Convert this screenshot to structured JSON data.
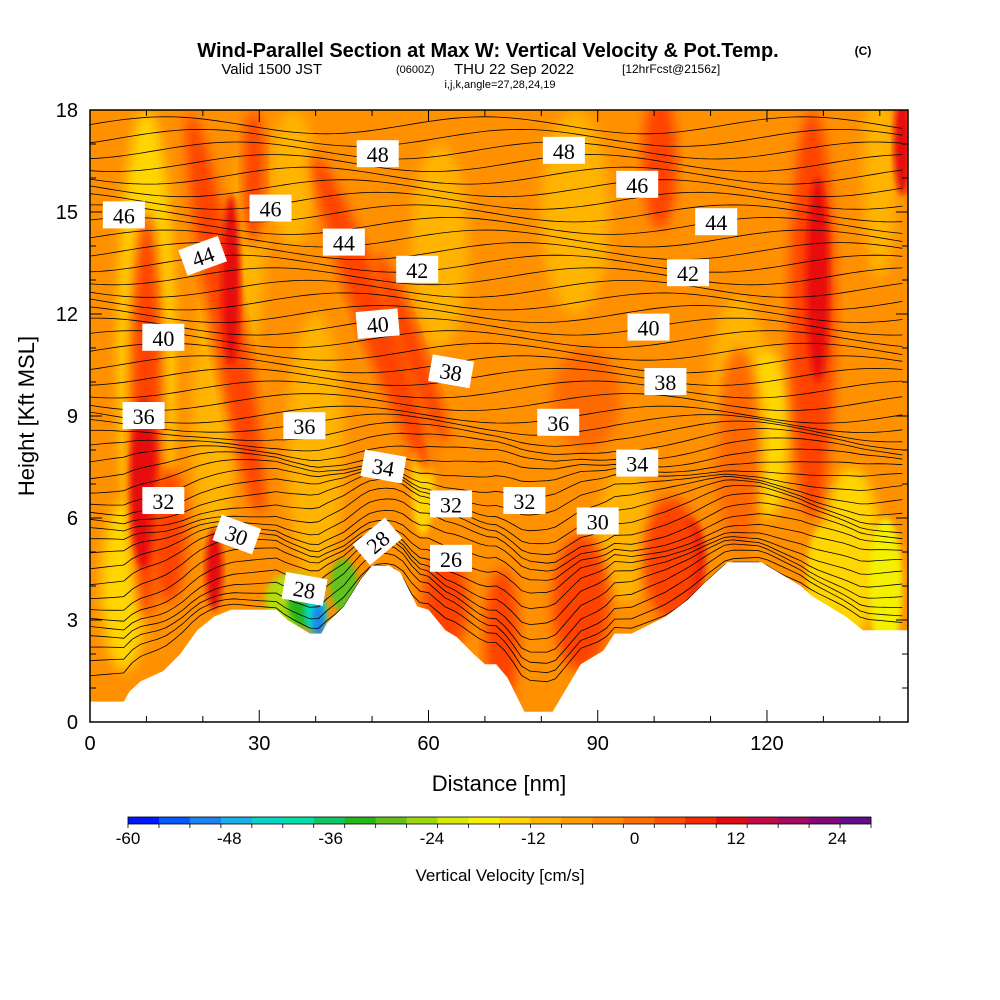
{
  "header": {
    "title_main": "Wind-Parallel Section at Max W: Vertical Velocity & Pot.Temp.",
    "title_c": "(C)",
    "subtitle_valid": "Valid 1500 JST",
    "subtitle_z": "(0600Z)",
    "subtitle_date": "THU 22 Sep 2022",
    "subtitle_fcst": "[12hrFcst@2156z]",
    "subtitle_ijk": "i,j,k,angle=27,28,24,19"
  },
  "chart_data": {
    "type": "contour",
    "xlabel": "Distance [nm]",
    "ylabel": "Height [Kft MSL]",
    "xlim": [
      0,
      145
    ],
    "ylim": [
      0,
      18
    ],
    "x_ticks": [
      0,
      30,
      60,
      90,
      120
    ],
    "x_tick_labels": [
      "0",
      "30",
      "60",
      "90",
      "120"
    ],
    "y_ticks": [
      0,
      3,
      6,
      9,
      12,
      15,
      18
    ],
    "y_tick_labels": [
      "0",
      "3",
      "6",
      "9",
      "12",
      "15",
      "18"
    ],
    "terrain_top_kft": [
      [
        0,
        0.6
      ],
      [
        6,
        0.6
      ],
      [
        7,
        0.9
      ],
      [
        9,
        1.2
      ],
      [
        13,
        1.5
      ],
      [
        16,
        2.0
      ],
      [
        19,
        2.7
      ],
      [
        22,
        3.1
      ],
      [
        25,
        3.3
      ],
      [
        29,
        3.3
      ],
      [
        33,
        3.3
      ],
      [
        35,
        3.0
      ],
      [
        37,
        2.8
      ],
      [
        39,
        2.6
      ],
      [
        41,
        2.6
      ],
      [
        42,
        2.9
      ],
      [
        45,
        3.4
      ],
      [
        48,
        4.2
      ],
      [
        50,
        4.6
      ],
      [
        53,
        4.6
      ],
      [
        55,
        4.4
      ],
      [
        58,
        3.4
      ],
      [
        60,
        3.3
      ],
      [
        63,
        2.7
      ],
      [
        65,
        2.5
      ],
      [
        68,
        2.0
      ],
      [
        70,
        1.7
      ],
      [
        72,
        1.7
      ],
      [
        74,
        1.3
      ],
      [
        77,
        0.3
      ],
      [
        82,
        0.3
      ],
      [
        87,
        1.7
      ],
      [
        91,
        2.1
      ],
      [
        93,
        2.6
      ],
      [
        96,
        2.6
      ],
      [
        102,
        3.1
      ],
      [
        106,
        3.6
      ],
      [
        109,
        4.1
      ],
      [
        113,
        4.7
      ],
      [
        119,
        4.7
      ],
      [
        123,
        4.3
      ],
      [
        126,
        4.0
      ],
      [
        128,
        3.7
      ],
      [
        131,
        3.4
      ],
      [
        134,
        3.1
      ],
      [
        137,
        2.7
      ],
      [
        145,
        2.7
      ]
    ],
    "theta_contour_labels": [
      {
        "value": "46",
        "x": 6,
        "y": 14.9,
        "angle": 0
      },
      {
        "value": "46",
        "x": 32,
        "y": 15.1,
        "angle": 0
      },
      {
        "value": "48",
        "x": 51,
        "y": 16.7,
        "angle": 0
      },
      {
        "value": "48",
        "x": 84,
        "y": 16.8,
        "angle": 0
      },
      {
        "value": "46",
        "x": 97,
        "y": 15.8,
        "angle": 0
      },
      {
        "value": "44",
        "x": 20,
        "y": 13.7,
        "angle": -20
      },
      {
        "value": "44",
        "x": 45,
        "y": 14.1,
        "angle": 0
      },
      {
        "value": "44",
        "x": 111,
        "y": 14.7,
        "angle": 0
      },
      {
        "value": "42",
        "x": 58,
        "y": 13.3,
        "angle": 0
      },
      {
        "value": "42",
        "x": 106,
        "y": 13.2,
        "angle": 0
      },
      {
        "value": "40",
        "x": 13,
        "y": 11.3,
        "angle": 0
      },
      {
        "value": "40",
        "x": 51,
        "y": 11.7,
        "angle": -5
      },
      {
        "value": "40",
        "x": 99,
        "y": 11.6,
        "angle": 0
      },
      {
        "value": "38",
        "x": 64,
        "y": 10.3,
        "angle": 10
      },
      {
        "value": "38",
        "x": 102,
        "y": 10.0,
        "angle": 0
      },
      {
        "value": "36",
        "x": 9.5,
        "y": 9.0,
        "angle": 0
      },
      {
        "value": "36",
        "x": 38,
        "y": 8.7,
        "angle": 0
      },
      {
        "value": "36",
        "x": 83,
        "y": 8.8,
        "angle": 0
      },
      {
        "value": "34",
        "x": 52,
        "y": 7.5,
        "angle": 10
      },
      {
        "value": "34",
        "x": 97,
        "y": 7.6,
        "angle": 0
      },
      {
        "value": "32",
        "x": 13,
        "y": 6.5,
        "angle": 0
      },
      {
        "value": "32",
        "x": 64,
        "y": 6.4,
        "angle": 0
      },
      {
        "value": "32",
        "x": 77,
        "y": 6.5,
        "angle": 0
      },
      {
        "value": "30",
        "x": 26,
        "y": 5.5,
        "angle": 20
      },
      {
        "value": "30",
        "x": 90,
        "y": 5.9,
        "angle": 0
      },
      {
        "value": "28",
        "x": 38,
        "y": 3.9,
        "angle": 10
      },
      {
        "value": "28",
        "x": 51,
        "y": 5.3,
        "angle": -40
      },
      {
        "value": "26",
        "x": 64,
        "y": 4.8,
        "angle": 0
      }
    ],
    "colorbar": {
      "label": "Vertical Velocity [cm/s]",
      "min": -60,
      "max": 28,
      "tick_values": [
        -60,
        -48,
        -36,
        -24,
        -12,
        0,
        12,
        24
      ],
      "tick_labels": [
        "-60",
        "-48",
        "-36",
        "-24",
        "-12",
        "0",
        "12",
        "24"
      ],
      "colors": [
        "#0018ff",
        "#0858ff",
        "#1e82f0",
        "#18aee8",
        "#06d6c8",
        "#00e0a8",
        "#0cc864",
        "#26b61a",
        "#62c21a",
        "#9cd80a",
        "#d4ea00",
        "#f6f000",
        "#ffd400",
        "#ffb400",
        "#ff9c00",
        "#ff8600",
        "#ff6c00",
        "#ff4e00",
        "#f42a00",
        "#e00a14",
        "#c40a46",
        "#a40a62",
        "#84087a",
        "#640c8c"
      ]
    },
    "field_colors": {
      "background": "#ff9000",
      "weak_updraft": "#ff6a00",
      "updraft": "#ff4200",
      "strong_updraft": "#e80a0a",
      "weak_downdraft": "#ffb400",
      "downdraft": "#ffd600",
      "strong_downdraft": "#f4f000",
      "terrain": "#ffffff"
    }
  }
}
